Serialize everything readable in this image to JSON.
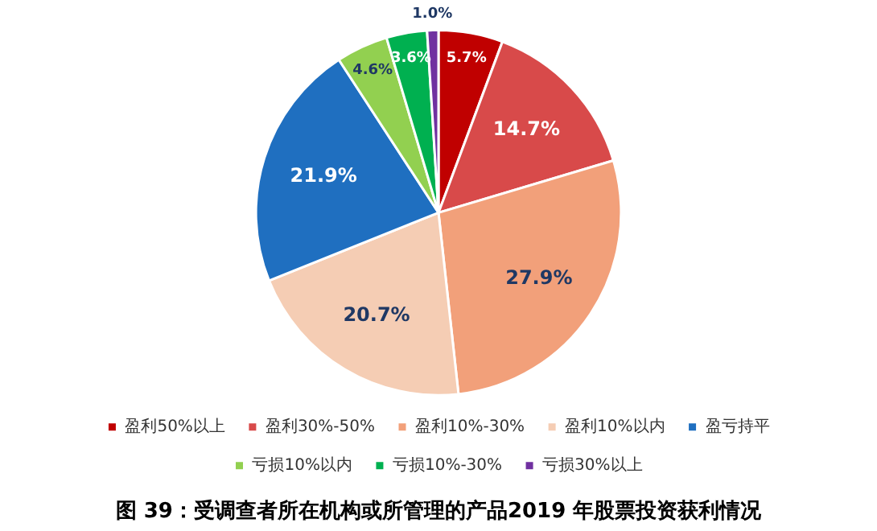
{
  "chart_data": {
    "type": "pie",
    "title": "图 39：受调查者所在机构或所管理的产品2019 年股票投资获利情况",
    "categories": [
      "盈利50%以上",
      "盈利30%-50%",
      "盈利10%-30%",
      "盈利10%以内",
      "盈亏持平",
      "亏损10%以内",
      "亏损10%-30%",
      "亏损30%以上"
    ],
    "values": [
      5.7,
      14.7,
      27.9,
      20.7,
      21.9,
      4.6,
      3.6,
      1.0
    ],
    "colors": [
      "#c00000",
      "#d84a4a",
      "#f2a07a",
      "#f5cdb4",
      "#1f6fc0",
      "#92d050",
      "#00b050",
      "#7030a0"
    ],
    "value_labels": [
      "5.7%",
      "14.7%",
      "27.9%",
      "20.7%",
      "21.9%",
      "4.6%",
      "3.6%",
      "1.0%"
    ],
    "legend": "bottom"
  }
}
